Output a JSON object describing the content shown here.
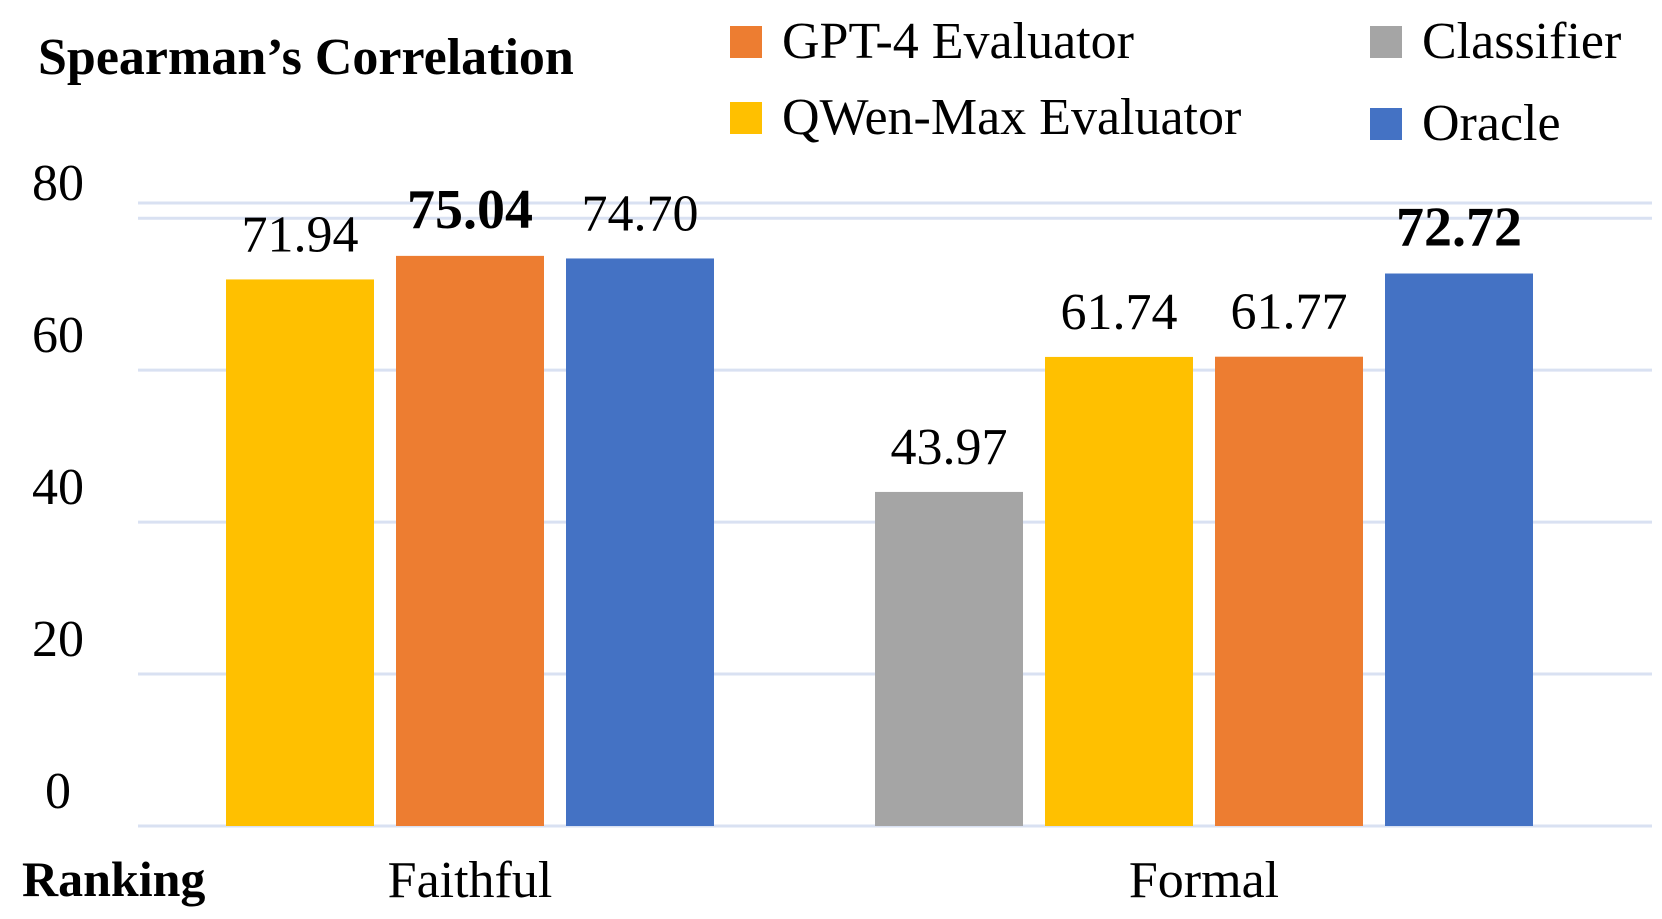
{
  "chart_data": {
    "type": "bar",
    "ylabel": "Spearman’s Correlation",
    "xlabel": "Ranking",
    "categories": [
      "Faithful",
      "Formal"
    ],
    "ylim": [
      0,
      82
    ],
    "yticks": [
      0,
      20,
      40,
      60,
      80
    ],
    "grid": true,
    "legend_position": "top-right",
    "series": [
      {
        "name": "Classifier",
        "color": "#A5A5A5",
        "values": [
          null,
          43.97
        ],
        "labels": [
          null,
          "43.97"
        ],
        "bold": [
          false,
          false
        ]
      },
      {
        "name": "QWen-Max Evaluator",
        "color": "#FFC000",
        "values": [
          71.94,
          61.74
        ],
        "labels": [
          "71.94",
          "61.74"
        ],
        "bold": [
          false,
          false
        ]
      },
      {
        "name": "GPT-4 Evaluator",
        "color": "#ED7D31",
        "values": [
          75.04,
          61.77
        ],
        "labels": [
          "75.04",
          "61.77"
        ],
        "bold": [
          true,
          false
        ]
      },
      {
        "name": "Oracle",
        "color": "#4472C4",
        "values": [
          74.7,
          72.72
        ],
        "labels": [
          "74.70",
          "72.72"
        ],
        "bold": [
          false,
          true
        ]
      }
    ]
  },
  "legend": [
    {
      "label": "GPT-4 Evaluator",
      "color": "#ED7D31"
    },
    {
      "label": "Classifier",
      "color": "#A5A5A5"
    },
    {
      "label": "QWen-Max Evaluator",
      "color": "#FFC000"
    },
    {
      "label": "Oracle",
      "color": "#4472C4"
    }
  ]
}
